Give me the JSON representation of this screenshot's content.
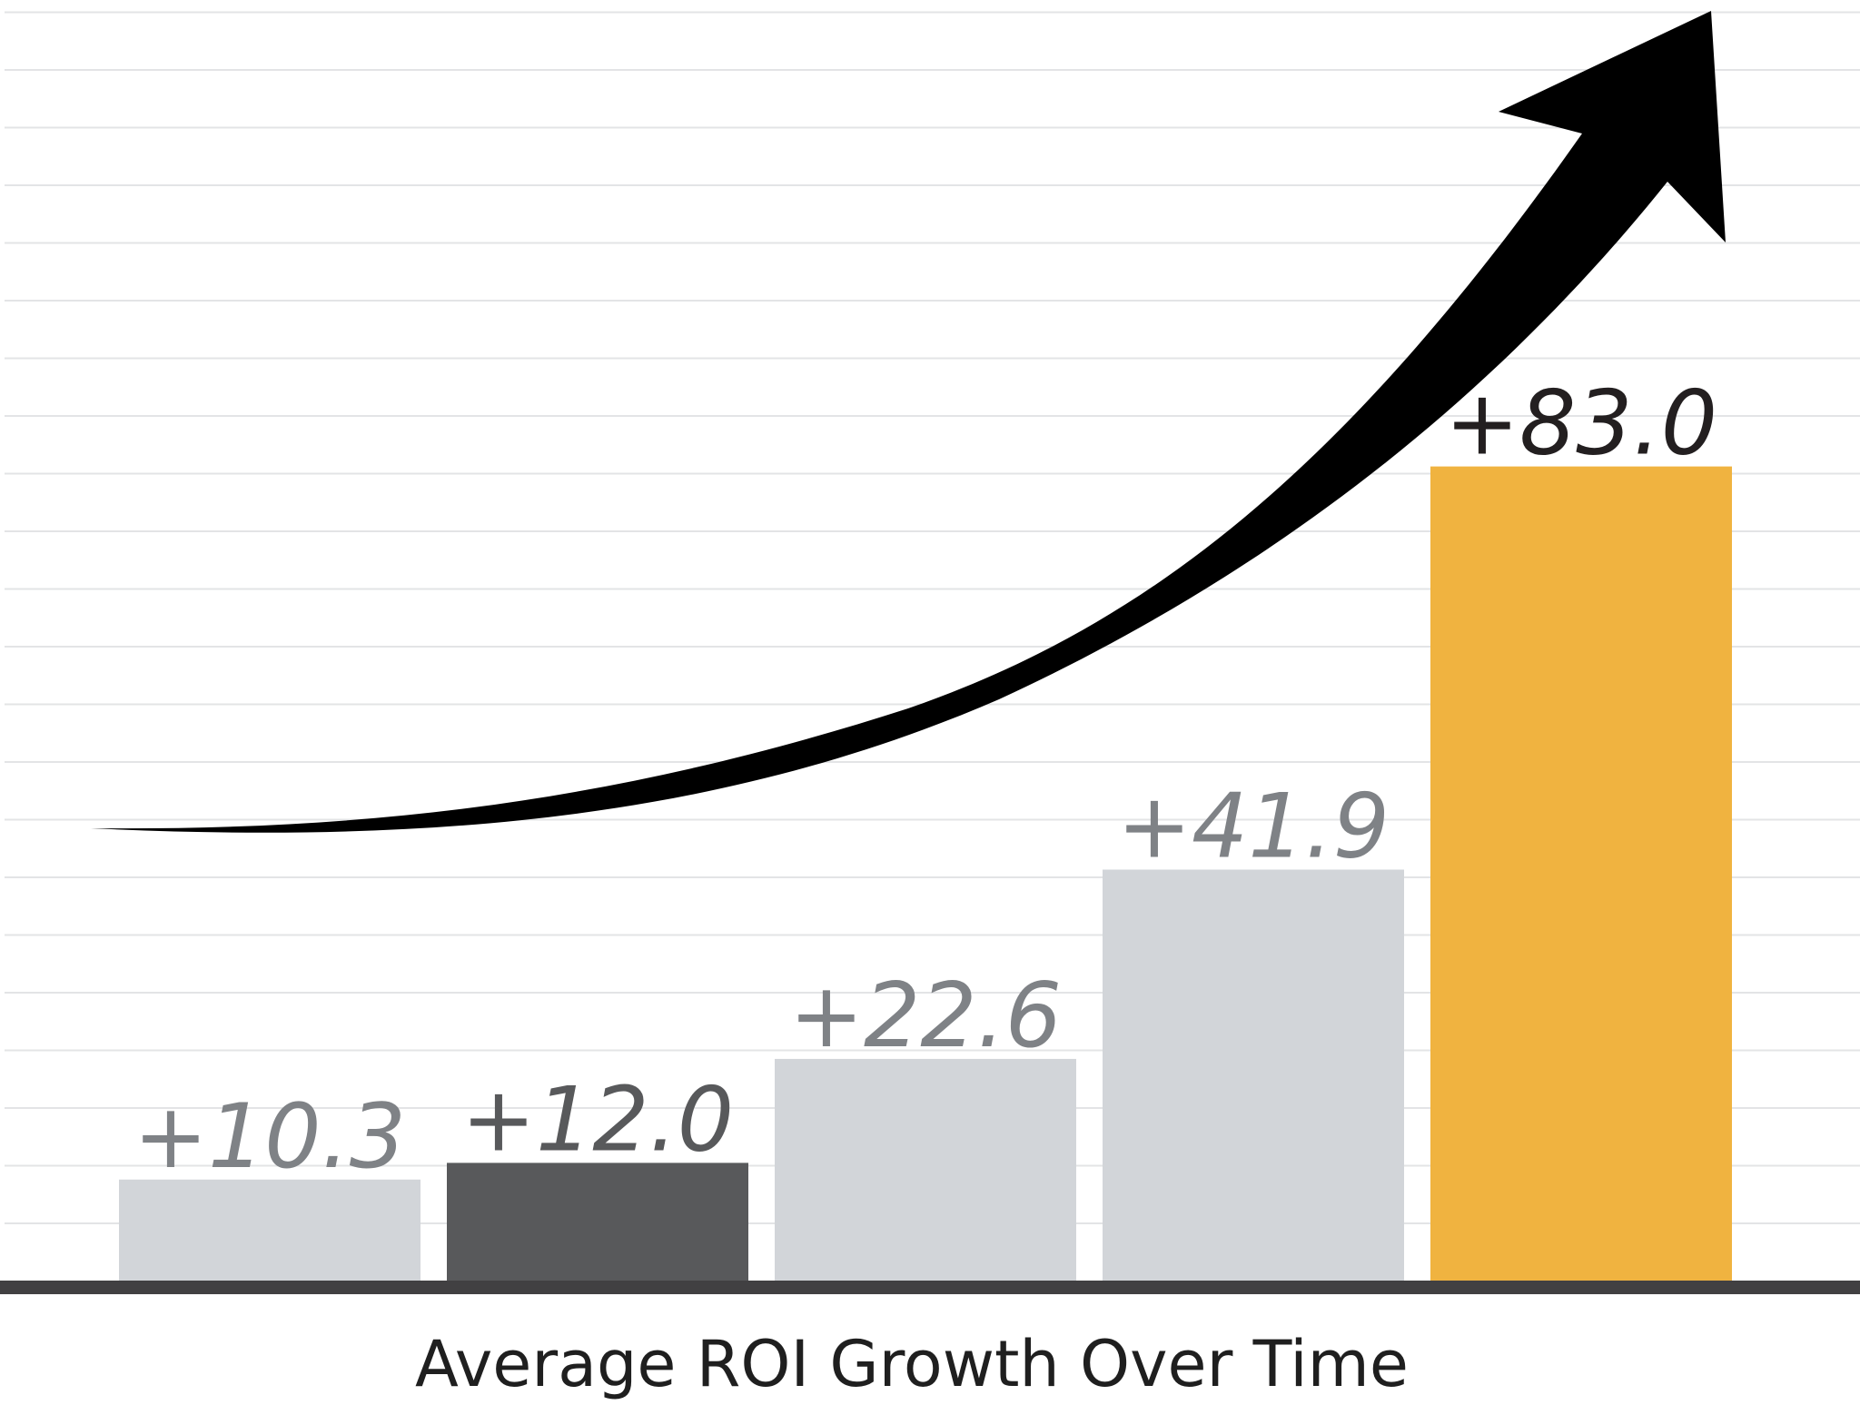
{
  "chart_data": {
    "type": "bar",
    "title": "Average ROI Growth Over Time",
    "categories": [
      "",
      "",
      "",
      "",
      ""
    ],
    "values": [
      10.3,
      12.0,
      22.6,
      41.9,
      83.0
    ],
    "labels": [
      "+10.3",
      "+12.0",
      "+22.6",
      "+41.9",
      "+83.0"
    ],
    "bar_colors": [
      "#d2d5d9",
      "#58595b",
      "#d2d5d9",
      "#d2d5d9",
      "#f0b340"
    ],
    "label_colors": [
      "#7f8286",
      "#58595b",
      "#7f8286",
      "#7f8286",
      "#231f20"
    ],
    "ylim": [
      0,
      100
    ],
    "grid": true,
    "trend_arrow": true,
    "colors": {
      "gridline": "#e3e4e6",
      "baseline": "#414042",
      "arrow": "#000000"
    }
  }
}
